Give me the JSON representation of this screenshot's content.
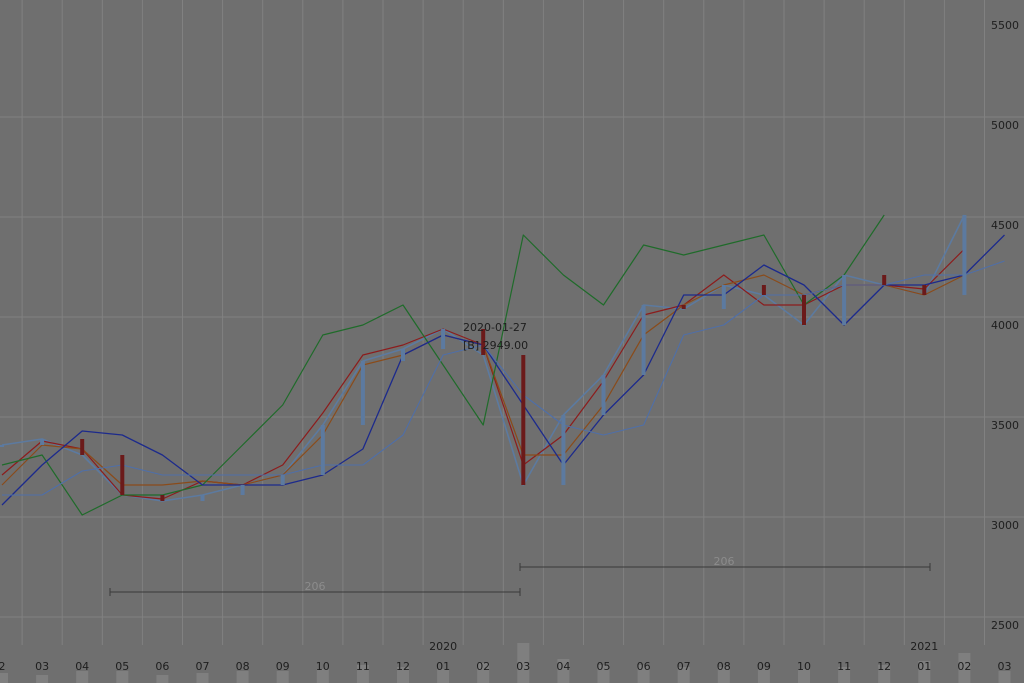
{
  "chart_data": {
    "type": "line",
    "title": "",
    "xlabel": "",
    "ylabel": "",
    "ylim": [
      2400,
      5600
    ],
    "grid": true,
    "y_ticks": [
      "5500",
      "5000",
      "4500",
      "4000",
      "3500",
      "3000",
      "2500"
    ],
    "x_ticks": [
      "2",
      "03",
      "04",
      "05",
      "06",
      "07",
      "08",
      "09",
      "10",
      "11",
      "12",
      "01",
      "02",
      "03",
      "04",
      "05",
      "06",
      "07",
      "08",
      "09",
      "10",
      "11",
      "12",
      "01",
      "02",
      "03"
    ],
    "year_labels": [
      "2020",
      "2021"
    ],
    "annotations": {
      "crosshair_date": "2020-01-27",
      "crosshair_value": "[B] 2949.00",
      "span_left": "206",
      "span_right": "206"
    },
    "colors": {
      "background": "#6f6f6f",
      "grid": "#818181",
      "candle_up": "#5c7aa0",
      "candle_down": "#6b1a1a",
      "tenkan": "#8c1c1c",
      "kijun": "#8a4b1a",
      "chikou": "#1f6b2a",
      "span_a": "#1c2a8c",
      "span_b": "#4f6fa8"
    },
    "x": [
      "2019-02",
      "2019-03",
      "2019-04",
      "2019-05",
      "2019-06",
      "2019-07",
      "2019-08",
      "2019-09",
      "2019-10",
      "2019-11",
      "2019-12",
      "2020-01",
      "2020-02",
      "2020-03",
      "2020-04",
      "2020-05",
      "2020-06",
      "2020-07",
      "2020-08",
      "2020-09",
      "2020-10",
      "2020-11",
      "2020-12",
      "2021-01",
      "2021-02",
      "2021-03"
    ],
    "series": [
      {
        "key": "close",
        "values": [
          3400,
          3430,
          3350,
          3150,
          3120,
          3150,
          3200,
          3250,
          3500,
          3820,
          3880,
          3980,
          3850,
          3200,
          3550,
          3750,
          4100,
          4080,
          4200,
          4150,
          4000,
          4250,
          4200,
          4150,
          4550,
          null
        ]
      },
      {
        "key": "tenkan",
        "values": [
          3250,
          3420,
          3380,
          3150,
          3130,
          3220,
          3200,
          3300,
          3560,
          3850,
          3900,
          3980,
          3900,
          3300,
          3450,
          3720,
          4050,
          4100,
          4250,
          4100,
          4100,
          4200,
          4200,
          4180,
          4380,
          null
        ]
      },
      {
        "key": "kijun",
        "values": [
          3200,
          3400,
          3380,
          3200,
          3200,
          3220,
          3200,
          3250,
          3450,
          3800,
          3850,
          3950,
          3900,
          3350,
          3350,
          3600,
          3950,
          4100,
          4200,
          4250,
          4150,
          4200,
          4200,
          4150,
          4250,
          null
        ]
      },
      {
        "key": "chikou",
        "values": [
          3300,
          3350,
          3050,
          3150,
          3150,
          3200,
          3400,
          3600,
          3950,
          4000,
          4100,
          3800,
          3500,
          4450,
          4250,
          4100,
          4400,
          4350,
          4400,
          4450,
          4100,
          4250,
          4550,
          null,
          null,
          null
        ]
      },
      {
        "key": "span_a",
        "values": [
          3100,
          3300,
          3470,
          3450,
          3350,
          3200,
          3200,
          3200,
          3250,
          3380,
          3850,
          3950,
          3900,
          3600,
          3300,
          3550,
          3750,
          4150,
          4150,
          4300,
          4200,
          4000,
          4200,
          4200,
          4250,
          4450
        ]
      },
      {
        "key": "span_b",
        "values": [
          3150,
          3150,
          3270,
          3300,
          3250,
          3250,
          3250,
          3250,
          3300,
          3300,
          3450,
          3850,
          3900,
          3650,
          3500,
          3450,
          3500,
          3950,
          4000,
          4150,
          4150,
          4200,
          4200,
          4250,
          4250,
          4320
        ]
      }
    ],
    "volume": [
      0.25,
      0.2,
      0.3,
      0.3,
      0.2,
      0.25,
      0.3,
      0.3,
      0.35,
      0.45,
      0.4,
      0.35,
      0.5,
      1.0,
      0.6,
      0.45,
      0.45,
      0.4,
      0.4,
      0.35,
      0.35,
      0.4,
      0.45,
      0.55,
      0.75,
      0.3
    ]
  }
}
